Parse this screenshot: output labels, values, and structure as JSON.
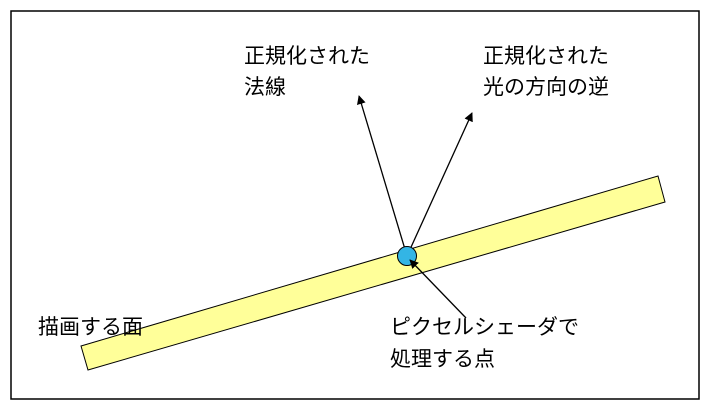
{
  "labels": {
    "normal_line1": "正規化された",
    "normal_line2": "法線",
    "light_line1": "正規化された",
    "light_line2": "光の方向の逆",
    "surface": "描画する面",
    "pixel_line1": "ピクセルシェーダで",
    "pixel_line2": "処理する点"
  },
  "colors": {
    "frame": "#000000",
    "surface_fill": "#FFFF99",
    "surface_stroke": "#000000",
    "point_fill": "#33B5E5",
    "point_stroke": "#000000",
    "arrow": "#000000"
  }
}
